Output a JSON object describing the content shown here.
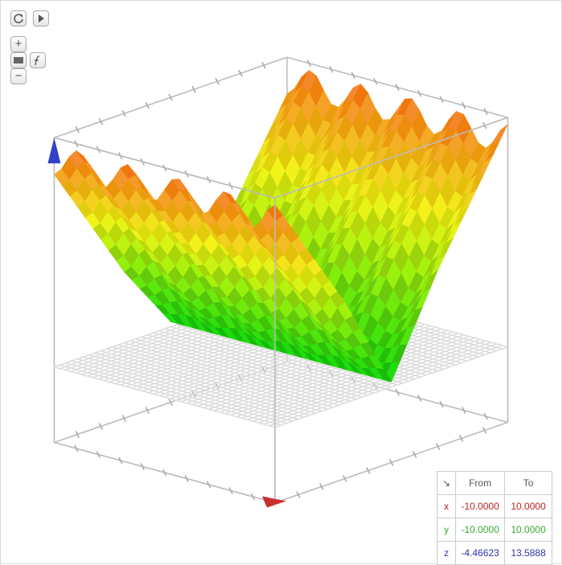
{
  "controls": {
    "zoom_in": "+",
    "zoom_out": "−"
  },
  "range_table": {
    "header": [
      "From",
      "To"
    ],
    "rows": [
      [
        "x",
        "-10.0000",
        "10.0000"
      ],
      [
        "y",
        "-10.0000",
        "10.0000"
      ],
      [
        "z",
        "-4.46623",
        "13.5888"
      ]
    ]
  }
}
